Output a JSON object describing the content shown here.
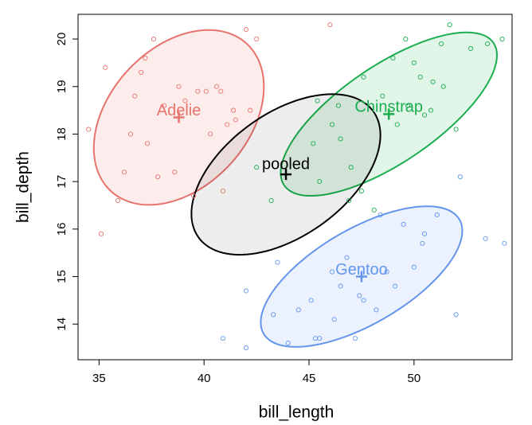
{
  "chart_data": {
    "type": "scatter",
    "x_label": "bill_length",
    "y_label": "bill_depth",
    "xlim": [
      34,
      54.67
    ],
    "ylim": [
      13.25,
      20.52
    ],
    "xticks": [
      35,
      40,
      45,
      50
    ],
    "yticks": [
      14,
      15,
      16,
      17,
      18,
      19,
      20
    ],
    "series": [
      {
        "name": "Adelie",
        "color": "#e8736c",
        "x": [
          34.5,
          35.3,
          35.9,
          36.2,
          36.7,
          37.0,
          37.3,
          37.6,
          37.8,
          38.1,
          38.6,
          38.8,
          39.1,
          39.5,
          39.7,
          40.1,
          40.3,
          40.6,
          40.9,
          41.1,
          41.4,
          42.0,
          42.2,
          35.1,
          36.5,
          37.2,
          40.8,
          41.5,
          42.5,
          46.0
        ],
        "y": [
          18.1,
          19.4,
          16.6,
          17.2,
          18.8,
          19.3,
          17.8,
          20.0,
          17.1,
          18.6,
          17.2,
          19.0,
          18.7,
          16.7,
          18.9,
          18.9,
          18.0,
          19.0,
          16.8,
          18.2,
          18.5,
          20.2,
          18.5,
          15.9,
          18.0,
          19.6,
          18.9,
          18.3,
          20.0,
          20.3
        ],
        "ellipse": {
          "center": [
            38.8,
            18.35
          ],
          "radii": [
            4.05,
            1.84
          ],
          "r": 0.35
        }
      },
      {
        "name": "Chinstrap",
        "color": "#1aae4f",
        "x": [
          46.5,
          46.4,
          45.4,
          46.1,
          47.0,
          47.6,
          48.5,
          49.0,
          49.2,
          49.6,
          50.0,
          50.3,
          50.5,
          50.9,
          51.3,
          51.7,
          52.0,
          52.7,
          53.5,
          54.2,
          45.2,
          46.9,
          43.2,
          42.5,
          45.5,
          48.1,
          50.8,
          49.7,
          51.4,
          47.5
        ],
        "y": [
          17.9,
          18.6,
          18.7,
          18.2,
          17.3,
          19.2,
          18.8,
          19.6,
          18.2,
          20.0,
          19.5,
          19.2,
          18.4,
          19.1,
          19.9,
          20.3,
          18.1,
          19.8,
          19.9,
          20.0,
          17.8,
          16.6,
          16.6,
          17.3,
          17.0,
          16.4,
          18.5,
          18.6,
          19.0,
          16.8
        ],
        "ellipse": {
          "center": [
            48.8,
            18.42
          ],
          "radii": [
            5.15,
            1.72
          ],
          "r": 0.72
        }
      },
      {
        "name": "Gentoo",
        "color": "#6495ed",
        "x": [
          40.9,
          42.0,
          43.3,
          44.0,
          44.5,
          45.1,
          45.5,
          46.1,
          46.5,
          46.8,
          47.2,
          47.6,
          48.2,
          48.7,
          49.1,
          49.5,
          50.0,
          50.5,
          51.1,
          52.2,
          54.3,
          53.4,
          45.3,
          46.2,
          43.5,
          42.0,
          48.4,
          50.4,
          47.4,
          52.0
        ],
        "y": [
          13.7,
          13.5,
          14.2,
          13.6,
          14.3,
          14.5,
          13.7,
          15.1,
          14.8,
          15.4,
          13.7,
          14.5,
          14.3,
          15.1,
          14.8,
          16.1,
          15.2,
          15.9,
          16.3,
          17.1,
          15.7,
          15.8,
          13.7,
          14.1,
          15.3,
          14.7,
          16.3,
          15.7,
          14.6,
          14.2
        ],
        "ellipse": {
          "center": [
            47.5,
            15.0
          ],
          "radii": [
            4.8,
            1.48
          ],
          "r": 0.65
        }
      }
    ],
    "pooled": {
      "name": "pooled",
      "color": "#000000",
      "center": [
        43.9,
        17.15
      ],
      "radii": [
        4.5,
        1.69
      ],
      "r": 0.49
    }
  }
}
